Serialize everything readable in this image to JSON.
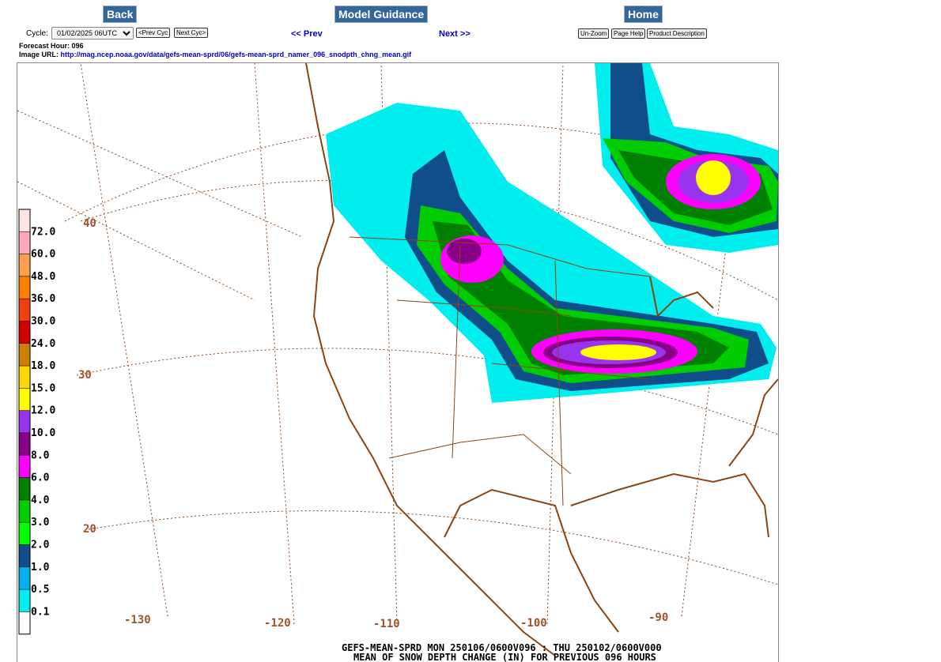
{
  "nav": {
    "back": "Back",
    "model_guidance": "Model Guidance",
    "home": "Home"
  },
  "cycle": {
    "label": "Cycle:",
    "selected": "01/02/2025 06UTC",
    "prev_cyc": "<Prev Cyc",
    "next_cyc": "Next Cyc>"
  },
  "pager": {
    "prev": "<< Prev",
    "next": "Next >>"
  },
  "tools": {
    "unzoom": "Un-Zoom",
    "help": "Page Help",
    "desc": "Product Description"
  },
  "info": {
    "forecast_hour": "Forecast Hour: 096",
    "image_url_label": "Image URL:",
    "image_url": "http://mag.ncep.noaa.gov/data/gefs-mean-sprd/06/gefs-mean-sprd_namer_096_snodpth_chng_mean.gif"
  },
  "map": {
    "lat_labels": [
      "40",
      "30",
      "20"
    ],
    "lon_labels": [
      "-130",
      "-120",
      "-110",
      "-100",
      "-90"
    ],
    "caption_line1": "GEFS-MEAN-SPRD MON 250106/0600V096 : THU 250102/0600V000",
    "caption_line2": "MEAN OF SNOW DEPTH CHANGE (IN) FOR PREVIOUS 096 HOURS",
    "legend": [
      {
        "label": "72.0",
        "color": "#ffe4e1"
      },
      {
        "label": "60.0",
        "color": "#ffaabb"
      },
      {
        "label": "48.0",
        "color": "#ffa050"
      },
      {
        "label": "36.0",
        "color": "#ff7f00"
      },
      {
        "label": "30.0",
        "color": "#f04010"
      },
      {
        "label": "24.0",
        "color": "#d00000"
      },
      {
        "label": "18.0",
        "color": "#cc8000"
      },
      {
        "label": "15.0",
        "color": "#ffd700"
      },
      {
        "label": "12.0",
        "color": "#ffff00"
      },
      {
        "label": "10.0",
        "color": "#9933ee"
      },
      {
        "label": "8.0",
        "color": "#880088"
      },
      {
        "label": "6.0",
        "color": "#ff00ff"
      },
      {
        "label": "4.0",
        "color": "#008000"
      },
      {
        "label": "3.0",
        "color": "#00cc00"
      },
      {
        "label": "2.0",
        "color": "#00ff00"
      },
      {
        "label": "1.0",
        "color": "#104e8b"
      },
      {
        "label": "0.5",
        "color": "#00b0f0"
      },
      {
        "label": "0.1",
        "color": "#00eeee"
      },
      {
        "label": "",
        "color": "#ffffff"
      }
    ]
  }
}
